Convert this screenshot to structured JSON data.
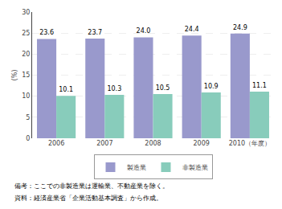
{
  "chart_data": {
    "type": "bar",
    "categories": [
      "2006",
      "2007",
      "2008",
      "2009",
      "2010（年度）"
    ],
    "series": [
      {
        "name": "製造業",
        "color": "#9999cc",
        "values": [
          23.6,
          23.7,
          24.0,
          24.4,
          24.9
        ],
        "value_labels": [
          "23.6",
          "23.7",
          "24.0",
          "24.4",
          "24.9"
        ]
      },
      {
        "name": "非製造業",
        "color": "#88ccbb",
        "values": [
          10.1,
          10.3,
          10.5,
          10.9,
          11.1
        ],
        "value_labels": [
          "10.1",
          "10.3",
          "10.5",
          "10.9",
          "11.1"
        ]
      }
    ],
    "y_label": "(%)",
    "ylim": [
      0,
      30
    ],
    "yticks": [
      0,
      5,
      10,
      15,
      20,
      25,
      30
    ],
    "grid": true,
    "data_labels": true,
    "legend": "bottom",
    "annotations": [
      "備考：ここでの非製造業は運輸業、不動産業を除く。",
      "資料：経済産業省「企業活動基本調査」から作成。"
    ]
  }
}
